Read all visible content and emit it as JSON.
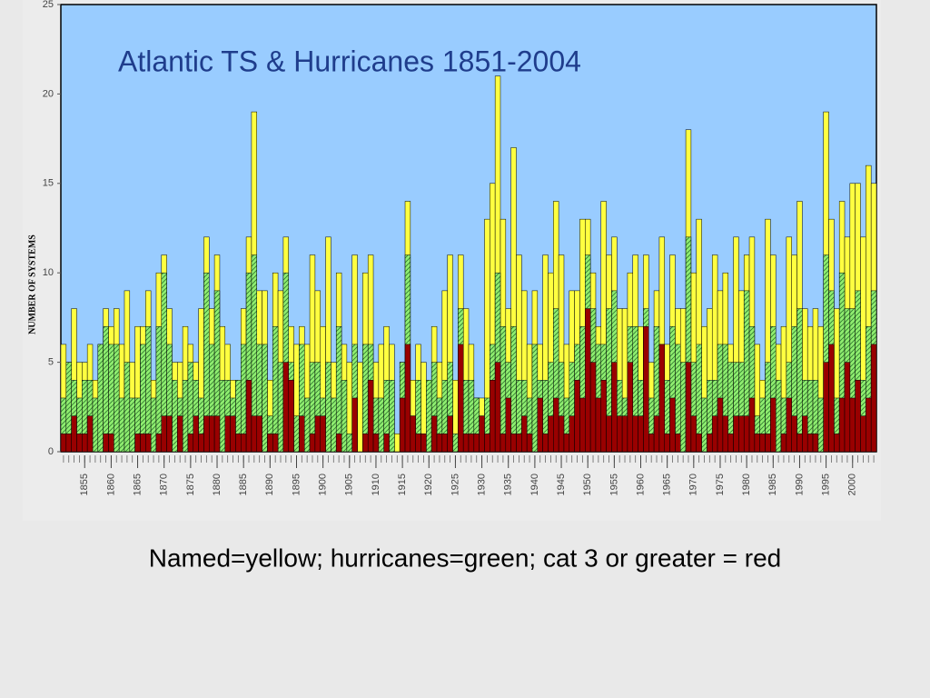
{
  "chart_data": {
    "type": "overlapping-bar",
    "title": "Atlantic  TS & Hurricanes 1851-2004",
    "y_label": "NUMBER  OF  SYSTEMS",
    "annotations": [
      "Named=yellow;   hurricanes=green;  cat 3 or greater = red"
    ],
    "x": [
      1851,
      1852,
      1853,
      1854,
      1855,
      1856,
      1857,
      1858,
      1859,
      1860,
      1861,
      1862,
      1863,
      1864,
      1865,
      1866,
      1867,
      1868,
      1869,
      1870,
      1871,
      1872,
      1873,
      1874,
      1875,
      1876,
      1877,
      1878,
      1879,
      1880,
      1881,
      1882,
      1883,
      1884,
      1885,
      1886,
      1887,
      1888,
      1889,
      1890,
      1891,
      1892,
      1893,
      1894,
      1895,
      1896,
      1897,
      1898,
      1899,
      1900,
      1901,
      1902,
      1903,
      1904,
      1905,
      1906,
      1907,
      1908,
      1909,
      1910,
      1911,
      1912,
      1913,
      1914,
      1915,
      1916,
      1917,
      1918,
      1919,
      1920,
      1921,
      1922,
      1923,
      1924,
      1925,
      1926,
      1927,
      1928,
      1929,
      1930,
      1931,
      1932,
      1933,
      1934,
      1935,
      1936,
      1937,
      1938,
      1939,
      1940,
      1941,
      1942,
      1943,
      1944,
      1945,
      1946,
      1947,
      1948,
      1949,
      1950,
      1951,
      1952,
      1953,
      1954,
      1955,
      1956,
      1957,
      1958,
      1959,
      1960,
      1961,
      1962,
      1963,
      1964,
      1965,
      1966,
      1967,
      1968,
      1969,
      1970,
      1971,
      1972,
      1973,
      1974,
      1975,
      1976,
      1977,
      1978,
      1979,
      1980,
      1981,
      1982,
      1983,
      1984,
      1985,
      1986,
      1987,
      1988,
      1989,
      1990,
      1991,
      1992,
      1993,
      1994,
      1995,
      1996,
      1997,
      1998,
      1999,
      2000,
      2001,
      2002,
      2003,
      2004
    ],
    "series": [
      {
        "color": "#ffff40",
        "hatch": false,
        "values": [
          6,
          5,
          8,
          5,
          5,
          6,
          4,
          6,
          8,
          7,
          8,
          6,
          9,
          5,
          7,
          7,
          9,
          4,
          10,
          11,
          8,
          5,
          5,
          7,
          6,
          5,
          8,
          12,
          8,
          11,
          7,
          6,
          4,
          4,
          8,
          12,
          19,
          9,
          9,
          4,
          10,
          9,
          12,
          7,
          6,
          7,
          6,
          11,
          9,
          7,
          12,
          5,
          10,
          6,
          5,
          11,
          5,
          10,
          11,
          5,
          6,
          7,
          6,
          1,
          5,
          14,
          4,
          6,
          5,
          4,
          7,
          5,
          9,
          11,
          4,
          11,
          8,
          6,
          3,
          3,
          13,
          15,
          21,
          13,
          8,
          17,
          11,
          9,
          6,
          9,
          6,
          11,
          10,
          14,
          11,
          6,
          9,
          9,
          13,
          13,
          10,
          7,
          14,
          11,
          12,
          8,
          8,
          10,
          11,
          7,
          11,
          5,
          9,
          12,
          6,
          11,
          8,
          8,
          18,
          10,
          13,
          7,
          8,
          11,
          9,
          10,
          6,
          12,
          9,
          11,
          12,
          6,
          4,
          13,
          11,
          6,
          7,
          12,
          11,
          14,
          8,
          7,
          8,
          7,
          19,
          13,
          8,
          14,
          12,
          15,
          15,
          12,
          16,
          15
        ]
      },
      {
        "color": "#90ee70",
        "hatch": true,
        "values": [
          3,
          5,
          4,
          3,
          4,
          4,
          3,
          6,
          7,
          6,
          6,
          3,
          5,
          3,
          3,
          6,
          7,
          3,
          7,
          10,
          6,
          4,
          3,
          4,
          5,
          4,
          3,
          10,
          6,
          9,
          4,
          4,
          3,
          4,
          6,
          10,
          11,
          6,
          6,
          2,
          7,
          5,
          10,
          5,
          2,
          6,
          3,
          5,
          5,
          3,
          5,
          3,
          7,
          4,
          1,
          6,
          0,
          6,
          6,
          3,
          3,
          4,
          4,
          0,
          5,
          11,
          2,
          4,
          1,
          4,
          5,
          3,
          4,
          5,
          1,
          8,
          4,
          4,
          3,
          2,
          3,
          6,
          10,
          7,
          5,
          7,
          4,
          4,
          3,
          6,
          4,
          4,
          5,
          8,
          5,
          3,
          5,
          6,
          7,
          11,
          8,
          6,
          6,
          8,
          9,
          4,
          3,
          7,
          7,
          4,
          8,
          3,
          7,
          6,
          4,
          7,
          6,
          5,
          12,
          5,
          6,
          3,
          4,
          4,
          6,
          6,
          5,
          5,
          5,
          9,
          7,
          2,
          3,
          5,
          7,
          4,
          3,
          5,
          7,
          8,
          4,
          4,
          4,
          3,
          11,
          9,
          3,
          10,
          8,
          8,
          9,
          4,
          7,
          9
        ]
      },
      {
        "color": "#990000",
        "hatch": false,
        "values": [
          1,
          1,
          2,
          1,
          1,
          2,
          0,
          0,
          1,
          1,
          0,
          0,
          0,
          0,
          1,
          1,
          1,
          0,
          1,
          2,
          2,
          0,
          2,
          0,
          1,
          2,
          1,
          2,
          2,
          2,
          0,
          2,
          2,
          1,
          1,
          4,
          2,
          2,
          0,
          1,
          1,
          0,
          5,
          4,
          0,
          2,
          0,
          1,
          2,
          2,
          0,
          0,
          1,
          0,
          0,
          3,
          0,
          1,
          4,
          1,
          0,
          1,
          0,
          0,
          3,
          6,
          2,
          1,
          1,
          0,
          2,
          1,
          1,
          2,
          0,
          6,
          1,
          1,
          1,
          2,
          1,
          4,
          5,
          1,
          3,
          1,
          1,
          2,
          1,
          0,
          3,
          1,
          2,
          3,
          2,
          1,
          2,
          4,
          3,
          8,
          5,
          3,
          4,
          2,
          5,
          2,
          2,
          5,
          2,
          2,
          7,
          1,
          2,
          6,
          1,
          3,
          1,
          0,
          5,
          2,
          1,
          0,
          1,
          2,
          3,
          2,
          1,
          2,
          2,
          2,
          3,
          1,
          1,
          1,
          3,
          0,
          1,
          3,
          2,
          1,
          2,
          1,
          1,
          0,
          5,
          6,
          1,
          3,
          5,
          3,
          4,
          2,
          3,
          6
        ]
      }
    ],
    "xlim": [
      1850.5,
      2004.5
    ],
    "xticks": [
      1855,
      1860,
      1865,
      1870,
      1875,
      1880,
      1885,
      1890,
      1895,
      1900,
      1905,
      1910,
      1915,
      1920,
      1925,
      1930,
      1935,
      1940,
      1945,
      1950,
      1955,
      1960,
      1965,
      1970,
      1975,
      1980,
      1985,
      1990,
      1995,
      2000
    ],
    "ylim": [
      0,
      25
    ],
    "yticks": [
      0,
      5,
      10,
      15,
      20,
      25
    ],
    "plot_background": "#99ccff"
  }
}
